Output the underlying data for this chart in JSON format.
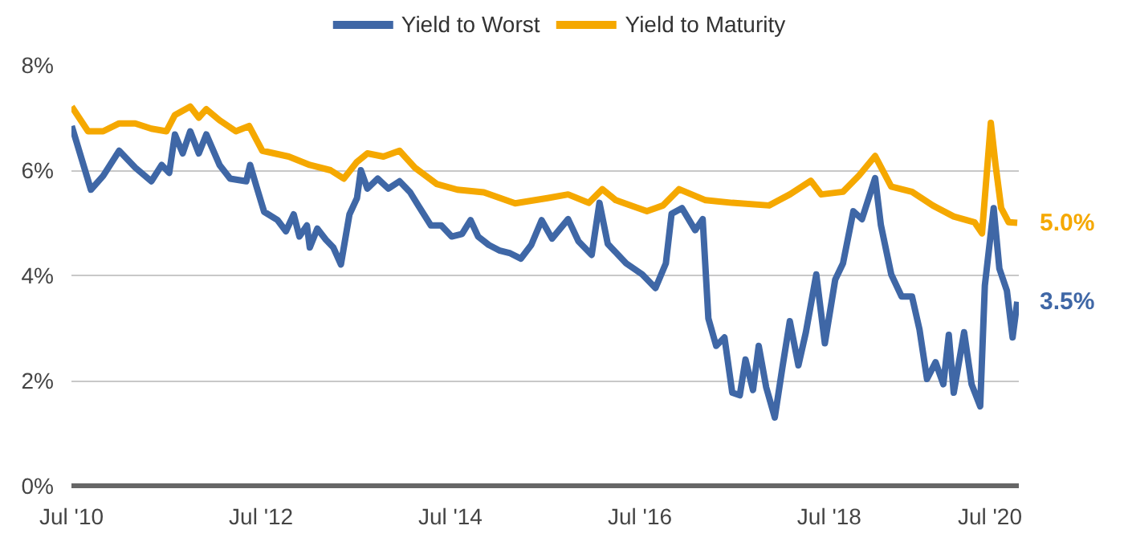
{
  "chart_data": {
    "type": "line",
    "xlim": [
      "2010-07-01",
      "2020-07-01"
    ],
    "ylim": [
      0,
      8
    ],
    "xticks": [
      {
        "value": "2010-07-01",
        "label": "Jul '10"
      },
      {
        "value": "2012-07-01",
        "label": "Jul '12"
      },
      {
        "value": "2014-07-01",
        "label": "Jul '14"
      },
      {
        "value": "2016-07-01",
        "label": "Jul '16"
      },
      {
        "value": "2018-07-01",
        "label": "Jul '18"
      },
      {
        "value": "2020-07-01",
        "label": "Jul '20"
      }
    ],
    "yticks": [
      {
        "value": 0,
        "label": "0%"
      },
      {
        "value": 2,
        "label": "2%"
      },
      {
        "value": 4,
        "label": "4%"
      },
      {
        "value": 6,
        "label": "6%"
      },
      {
        "value": 8,
        "label": "8%"
      }
    ],
    "grid": "y",
    "legend": "top",
    "marker": "none",
    "line_style": "solid",
    "series": [
      {
        "name": "Yield to Worst",
        "color": "#3f67a6",
        "x": [
          "2010-07-02",
          "2010-09-14",
          "2010-10-31",
          "2011-01-01",
          "2011-03-04",
          "2011-05-05",
          "2011-06-14",
          "2011-07-13",
          "2011-08-04",
          "2011-09-03",
          "2011-10-02",
          "2011-11-04",
          "2011-12-03",
          "2012-01-23",
          "2012-03-04",
          "2012-05-05",
          "2012-05-20",
          "2012-06-14",
          "2012-07-13",
          "2012-09-03",
          "2012-10-05",
          "2012-11-04",
          "2012-11-26",
          "2012-12-25",
          "2013-01-05",
          "2013-02-03",
          "2013-03-08",
          "2013-04-06",
          "2013-05-05",
          "2013-06-07",
          "2013-07-06",
          "2013-07-21",
          "2013-08-15",
          "2013-09-24",
          "2013-11-04",
          "2013-12-17",
          "2014-01-27",
          "2014-03-08",
          "2014-04-17",
          "2014-05-27",
          "2014-07-06",
          "2014-08-15",
          "2014-09-17",
          "2014-10-16",
          "2014-11-26",
          "2015-01-08",
          "2015-02-17",
          "2015-03-30",
          "2015-05-09",
          "2015-06-18",
          "2015-07-28",
          "2015-09-28",
          "2015-11-07",
          "2015-12-28",
          "2016-01-27",
          "2016-02-28",
          "2016-05-09",
          "2016-07-10",
          "2016-08-30",
          "2016-10-09",
          "2016-10-31",
          "2016-12-10",
          "2017-01-30",
          "2017-02-28",
          "2017-03-22",
          "2017-04-21",
          "2017-05-23",
          "2017-06-22",
          "2017-07-21",
          "2017-08-12",
          "2017-09-10",
          "2017-10-02",
          "2017-10-31",
          "2017-12-03",
          "2018-01-01",
          "2018-01-30",
          "2018-03-04",
          "2018-04-02",
          "2018-05-12",
          "2018-06-14",
          "2018-07-24",
          "2018-08-23",
          "2018-10-02",
          "2018-11-04",
          "2018-12-25",
          "2019-01-16",
          "2019-02-25",
          "2019-04-06",
          "2019-05-16",
          "2019-06-14",
          "2019-07-13",
          "2019-08-15",
          "2019-09-14",
          "2019-10-05",
          "2019-10-24",
          "2019-12-03",
          "2020-01-01",
          "2020-02-03",
          "2020-02-21",
          "2020-03-26",
          "2020-04-17",
          "2020-05-16",
          "2020-06-07",
          "2020-06-25"
        ],
        "values": [
          6.84,
          5.63,
          5.89,
          6.37,
          6.05,
          5.79,
          6.1,
          5.95,
          6.68,
          6.32,
          6.74,
          6.32,
          6.68,
          6.1,
          5.84,
          5.79,
          6.1,
          5.68,
          5.21,
          5.05,
          4.84,
          5.16,
          4.74,
          4.95,
          4.53,
          4.89,
          4.68,
          4.53,
          4.21,
          5.16,
          5.47,
          6.0,
          5.65,
          5.84,
          5.65,
          5.79,
          5.58,
          5.26,
          4.95,
          4.95,
          4.74,
          4.79,
          5.05,
          4.74,
          4.58,
          4.47,
          4.42,
          4.32,
          4.58,
          5.05,
          4.7,
          5.07,
          4.65,
          4.39,
          5.38,
          4.6,
          4.23,
          4.02,
          3.76,
          4.23,
          5.17,
          5.28,
          4.86,
          5.07,
          3.18,
          2.66,
          2.82,
          1.77,
          1.72,
          2.4,
          1.82,
          2.66,
          1.87,
          1.3,
          2.24,
          3.13,
          2.29,
          2.92,
          4.02,
          2.71,
          3.92,
          4.23,
          5.22,
          5.07,
          5.85,
          4.96,
          4.02,
          3.6,
          3.6,
          2.97,
          2.03,
          2.35,
          1.93,
          2.87,
          1.77,
          2.92,
          1.93,
          1.51,
          3.81,
          5.28,
          4.13,
          3.71,
          2.82,
          3.5
        ]
      },
      {
        "name": "Yield to Maturity",
        "color": "#f5a800",
        "x": [
          "2010-07-02",
          "2010-09-03",
          "2010-10-31",
          "2011-01-01",
          "2011-03-04",
          "2011-05-05",
          "2011-07-02",
          "2011-08-04",
          "2011-10-02",
          "2011-11-04",
          "2011-12-03",
          "2012-01-23",
          "2012-03-26",
          "2012-05-16",
          "2012-07-06",
          "2012-10-16",
          "2013-01-05",
          "2013-03-26",
          "2013-05-16",
          "2013-07-06",
          "2013-08-15",
          "2013-10-16",
          "2013-12-17",
          "2014-02-14",
          "2014-05-09",
          "2014-07-28",
          "2014-11-07",
          "2015-03-08",
          "2015-07-10",
          "2015-09-28",
          "2015-12-17",
          "2016-02-07",
          "2016-03-30",
          "2016-07-28",
          "2016-09-28",
          "2016-11-29",
          "2017-03-11",
          "2017-06-22",
          "2017-11-11",
          "2018-01-30",
          "2018-04-21",
          "2018-05-31",
          "2018-08-23",
          "2018-10-24",
          "2018-12-25",
          "2019-02-25",
          "2019-05-16",
          "2019-08-04",
          "2019-10-24",
          "2020-01-12",
          "2020-02-10",
          "2020-03-15",
          "2020-04-02",
          "2020-04-24",
          "2020-05-23",
          "2020-06-25"
        ],
        "values": [
          7.21,
          6.74,
          6.74,
          6.89,
          6.89,
          6.79,
          6.74,
          7.05,
          7.21,
          7.0,
          7.16,
          6.95,
          6.74,
          6.84,
          6.37,
          6.26,
          6.1,
          6.0,
          5.84,
          6.16,
          6.32,
          6.26,
          6.37,
          6.05,
          5.74,
          5.63,
          5.58,
          5.37,
          5.47,
          5.54,
          5.38,
          5.64,
          5.43,
          5.22,
          5.33,
          5.64,
          5.43,
          5.38,
          5.33,
          5.54,
          5.8,
          5.54,
          5.59,
          5.9,
          6.27,
          5.69,
          5.59,
          5.33,
          5.12,
          5.01,
          4.8,
          6.9,
          6.11,
          5.28,
          5.01,
          5.0
        ]
      }
    ],
    "annotations": [
      {
        "text": "5.0%",
        "x": "2020-06-25",
        "y": 5.0
      },
      {
        "text": "3.5%",
        "x": "2020-06-25",
        "y": 3.5
      }
    ]
  }
}
